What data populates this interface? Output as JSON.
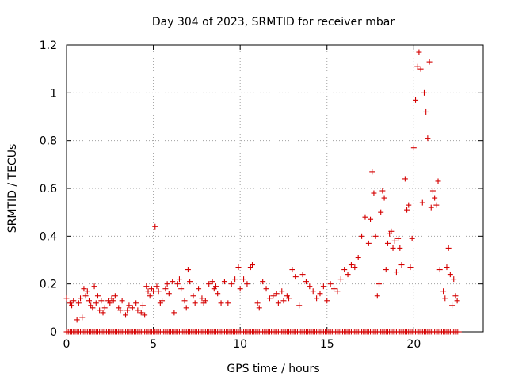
{
  "chart_data": {
    "type": "scatter",
    "title": "Day 304 of 2023, SRMTID for receiver mbar",
    "xlabel": "GPS time / hours",
    "ylabel": "SRMTID / TECUs",
    "xlim": [
      0,
      24
    ],
    "ylim": [
      0,
      1.2
    ],
    "xticks": [
      0,
      5,
      10,
      15,
      20
    ],
    "yticks": [
      0,
      0.2,
      0.4,
      0.6,
      0.8,
      1,
      1.2
    ],
    "xtick_labels": [
      "0",
      "5",
      "10",
      "15",
      "20"
    ],
    "ytick_labels": [
      "0",
      "0.2",
      "0.4",
      "0.6",
      "0.8",
      "1",
      "1.2"
    ],
    "grid": true,
    "marker": "plus",
    "series_color": "#d40000",
    "baseline_zero_range": [
      0,
      22.6
    ],
    "series": [
      {
        "name": "SRMTID",
        "x": [
          0.0,
          0.2,
          0.3,
          0.4,
          0.6,
          0.7,
          0.8,
          0.9,
          1.0,
          1.1,
          1.2,
          1.3,
          1.4,
          1.5,
          1.6,
          1.7,
          1.8,
          1.9,
          2.0,
          2.1,
          2.2,
          2.4,
          2.5,
          2.6,
          2.7,
          2.8,
          3.0,
          3.1,
          3.2,
          3.4,
          3.5,
          3.6,
          3.8,
          4.0,
          4.1,
          4.3,
          4.4,
          4.5,
          4.6,
          4.7,
          4.8,
          4.9,
          5.0,
          5.1,
          5.2,
          5.3,
          5.4,
          5.5,
          5.7,
          5.8,
          5.9,
          6.1,
          6.2,
          6.4,
          6.5,
          6.6,
          6.8,
          6.9,
          7.0,
          7.1,
          7.3,
          7.4,
          7.6,
          7.8,
          7.9,
          8.0,
          8.2,
          8.4,
          8.5,
          8.6,
          8.7,
          8.9,
          9.1,
          9.3,
          9.5,
          9.7,
          9.9,
          10.0,
          10.2,
          10.4,
          10.6,
          10.7,
          11.0,
          11.1,
          11.3,
          11.5,
          11.7,
          11.9,
          12.1,
          12.2,
          12.4,
          12.5,
          12.7,
          12.8,
          13.0,
          13.2,
          13.4,
          13.6,
          13.8,
          14.0,
          14.2,
          14.4,
          14.6,
          14.8,
          15.0,
          15.2,
          15.4,
          15.6,
          15.8,
          16.0,
          16.2,
          16.4,
          16.6,
          16.8,
          17.0,
          17.2,
          17.4,
          17.5,
          17.6,
          17.7,
          17.8,
          17.9,
          18.0,
          18.1,
          18.2,
          18.3,
          18.4,
          18.5,
          18.6,
          18.7,
          18.8,
          18.9,
          19.0,
          19.1,
          19.2,
          19.3,
          19.5,
          19.6,
          19.7,
          19.8,
          19.9,
          20.0,
          20.1,
          20.2,
          20.3,
          20.4,
          20.5,
          20.6,
          20.7,
          20.8,
          20.9,
          21.0,
          21.1,
          21.2,
          21.3,
          21.4,
          21.5,
          21.7,
          21.8,
          21.9,
          22.0,
          22.1,
          22.2,
          22.3,
          22.4,
          22.5
        ],
        "y": [
          0.14,
          0.12,
          0.11,
          0.13,
          0.05,
          0.12,
          0.14,
          0.06,
          0.18,
          0.15,
          0.17,
          0.13,
          0.11,
          0.1,
          0.19,
          0.12,
          0.15,
          0.09,
          0.13,
          0.08,
          0.1,
          0.13,
          0.12,
          0.14,
          0.13,
          0.15,
          0.1,
          0.09,
          0.13,
          0.07,
          0.09,
          0.11,
          0.1,
          0.12,
          0.09,
          0.08,
          0.11,
          0.07,
          0.19,
          0.17,
          0.15,
          0.18,
          0.17,
          0.44,
          0.19,
          0.17,
          0.12,
          0.13,
          0.18,
          0.2,
          0.16,
          0.21,
          0.08,
          0.2,
          0.22,
          0.18,
          0.13,
          0.1,
          0.26,
          0.21,
          0.15,
          0.12,
          0.18,
          0.14,
          0.12,
          0.13,
          0.2,
          0.21,
          0.18,
          0.19,
          0.16,
          0.12,
          0.21,
          0.12,
          0.2,
          0.22,
          0.27,
          0.18,
          0.22,
          0.2,
          0.27,
          0.28,
          0.12,
          0.1,
          0.21,
          0.18,
          0.14,
          0.15,
          0.16,
          0.12,
          0.17,
          0.13,
          0.15,
          0.14,
          0.26,
          0.23,
          0.11,
          0.24,
          0.21,
          0.19,
          0.17,
          0.14,
          0.16,
          0.19,
          0.13,
          0.2,
          0.18,
          0.17,
          0.22,
          0.26,
          0.24,
          0.28,
          0.27,
          0.31,
          0.4,
          0.48,
          0.37,
          0.47,
          0.67,
          0.58,
          0.4,
          0.15,
          0.2,
          0.5,
          0.59,
          0.56,
          0.26,
          0.37,
          0.41,
          0.42,
          0.35,
          0.38,
          0.25,
          0.39,
          0.35,
          0.28,
          0.64,
          0.51,
          0.53,
          0.27,
          0.39,
          0.77,
          0.97,
          1.11,
          1.17,
          1.1,
          0.54,
          1.0,
          0.92,
          0.81,
          1.13,
          0.52,
          0.59,
          0.56,
          0.53,
          0.63,
          0.26,
          0.17,
          0.14,
          0.27,
          0.35,
          0.24,
          0.11,
          0.22,
          0.15,
          0.13
        ]
      }
    ]
  }
}
